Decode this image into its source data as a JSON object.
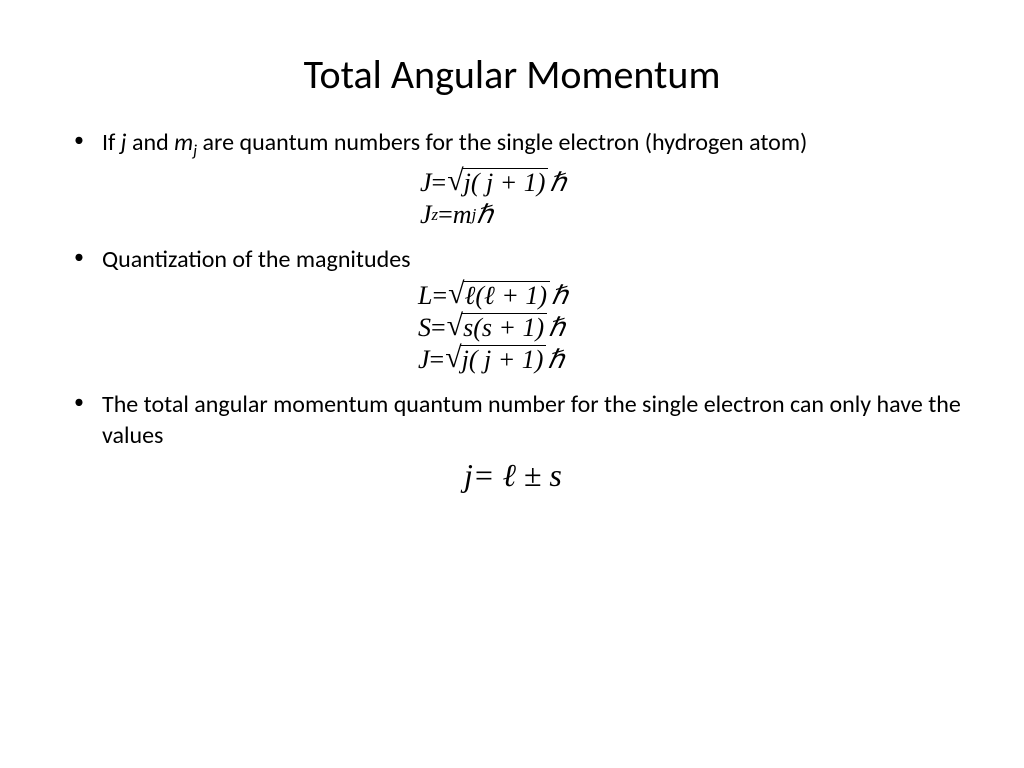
{
  "title": "Total Angular Momentum",
  "bullets": {
    "b1_pre": "If ",
    "b1_var1": "j",
    "b1_mid1": " and ",
    "b1_var2": "m",
    "b1_var2_sub": "j",
    "b1_post": " are quantum numbers for the single electron (hydrogen atom)",
    "b2": "Quantization of the magnitudes",
    "b3": "The total angular momentum quantum number for the single electron can only have the values"
  },
  "eq": {
    "J_lhs": "J",
    "eq_sign": " = ",
    "sqrt_j": "j( j + 1)",
    "hbar": "ℏ",
    "Jz_lhs": "J",
    "Jz_sub": "z",
    "Jz_rhs_m": "m",
    "Jz_rhs_msub": "j",
    "L_lhs": "L",
    "sqrt_l": "ℓ(ℓ + 1)",
    "S_lhs": "S",
    "sqrt_s": "s(s + 1)",
    "final_j": "j",
    "final_rhs": " = ℓ ± s"
  },
  "style": {
    "bg": "#ffffff",
    "fg": "#000000",
    "title_fontsize": 40,
    "body_fontsize": 24,
    "eq_fontsize": 26,
    "eq_big_fontsize": 32
  }
}
